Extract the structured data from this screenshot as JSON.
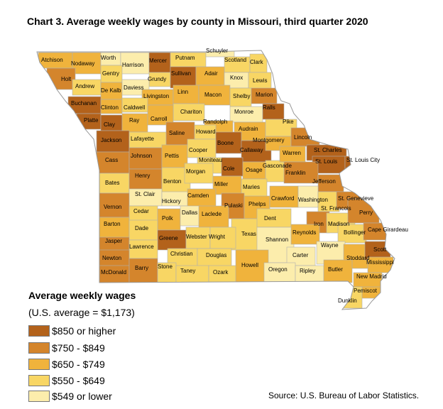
{
  "title": "Chart 3. Average weekly wages by county in Missouri, third quarter 2020",
  "legend": {
    "title": "Average weekly wages",
    "subtitle": "(U.S. average = $1,173)",
    "items": [
      {
        "label": "$850 or higher",
        "color": "#b3621b"
      },
      {
        "label": "$750 - $849",
        "color": "#d4852c"
      },
      {
        "label": "$650 - $749",
        "color": "#f0b33c"
      },
      {
        "label": "$550 - $649",
        "color": "#f8d664"
      },
      {
        "label": "$549 or lower",
        "color": "#fcedac"
      }
    ]
  },
  "source": "Source: U.S. Bureau of Labor Statistics.",
  "counties": [
    {
      "name": "Atchison",
      "cls": 2
    },
    {
      "name": "Nodaway",
      "cls": 2
    },
    {
      "name": "Worth",
      "cls": 4
    },
    {
      "name": "Harrison",
      "cls": 4
    },
    {
      "name": "Mercer",
      "cls": 0
    },
    {
      "name": "Putnam",
      "cls": 3
    },
    {
      "name": "Schuyler",
      "cls": 4
    },
    {
      "name": "Scotland",
      "cls": 3
    },
    {
      "name": "Clark",
      "cls": 3
    },
    {
      "name": "Holt",
      "cls": 1
    },
    {
      "name": "Gentry",
      "cls": 3
    },
    {
      "name": "Grundy",
      "cls": 3
    },
    {
      "name": "Sullivan",
      "cls": 0
    },
    {
      "name": "Adair",
      "cls": 2
    },
    {
      "name": "Knox",
      "cls": 4
    },
    {
      "name": "Lewis",
      "cls": 3
    },
    {
      "name": "Andrew",
      "cls": 3
    },
    {
      "name": "De Kalb",
      "cls": 2
    },
    {
      "name": "Daviess",
      "cls": 4
    },
    {
      "name": "Livingston",
      "cls": 2
    },
    {
      "name": "Linn",
      "cls": 2
    },
    {
      "name": "Macon",
      "cls": 2
    },
    {
      "name": "Shelby",
      "cls": 3
    },
    {
      "name": "Marion",
      "cls": 1
    },
    {
      "name": "Buchanan",
      "cls": 0
    },
    {
      "name": "Clinton",
      "cls": 2
    },
    {
      "name": "Caldwell",
      "cls": 3
    },
    {
      "name": "Chariton",
      "cls": 3
    },
    {
      "name": "Monroe",
      "cls": 4
    },
    {
      "name": "Ralls",
      "cls": 0
    },
    {
      "name": "Platte",
      "cls": 0
    },
    {
      "name": "Clay",
      "cls": 0
    },
    {
      "name": "Ray",
      "cls": 2
    },
    {
      "name": "Carroll",
      "cls": 2
    },
    {
      "name": "Randolph",
      "cls": 2
    },
    {
      "name": "Audrain",
      "cls": 2
    },
    {
      "name": "Pike",
      "cls": 3
    },
    {
      "name": "Jackson",
      "cls": 0
    },
    {
      "name": "Lafayette",
      "cls": 3
    },
    {
      "name": "Saline",
      "cls": 1
    },
    {
      "name": "Howard",
      "cls": 3
    },
    {
      "name": "Boone",
      "cls": 0
    },
    {
      "name": "Callaway",
      "cls": 0
    },
    {
      "name": "Montgomery",
      "cls": 2
    },
    {
      "name": "Lincoln",
      "cls": 1
    },
    {
      "name": "Cass",
      "cls": 1
    },
    {
      "name": "Johnson",
      "cls": 1
    },
    {
      "name": "Pettis",
      "cls": 2
    },
    {
      "name": "Cooper",
      "cls": 3
    },
    {
      "name": "Moniteau",
      "cls": 3
    },
    {
      "name": "Cole",
      "cls": 0
    },
    {
      "name": "Osage",
      "cls": 2
    },
    {
      "name": "Gasconade",
      "cls": 3
    },
    {
      "name": "Warren",
      "cls": 2
    },
    {
      "name": "St. Charles",
      "cls": 0
    },
    {
      "name": "St. Louis",
      "cls": 0
    },
    {
      "name": "St. Louis City",
      "cls": 0
    },
    {
      "name": "Bates",
      "cls": 3
    },
    {
      "name": "Henry",
      "cls": 1
    },
    {
      "name": "Benton",
      "cls": 3
    },
    {
      "name": "Morgan",
      "cls": 3
    },
    {
      "name": "Miller",
      "cls": 2
    },
    {
      "name": "Maries",
      "cls": 3
    },
    {
      "name": "Franklin",
      "cls": 1
    },
    {
      "name": "Jefferson",
      "cls": 1
    },
    {
      "name": "St. Clair",
      "cls": 4
    },
    {
      "name": "Hickory",
      "cls": 4
    },
    {
      "name": "Camden",
      "cls": 2
    },
    {
      "name": "Pulaski",
      "cls": 1
    },
    {
      "name": "Phelps",
      "cls": 2
    },
    {
      "name": "Crawford",
      "cls": 2
    },
    {
      "name": "Washington",
      "cls": 4
    },
    {
      "name": "St. Francois",
      "cls": 3
    },
    {
      "name": "St. Genevieve",
      "cls": 1
    },
    {
      "name": "Vernon",
      "cls": 1
    },
    {
      "name": "Cedar",
      "cls": 3
    },
    {
      "name": "Polk",
      "cls": 2
    },
    {
      "name": "Dallas",
      "cls": 4
    },
    {
      "name": "Laclede",
      "cls": 2
    },
    {
      "name": "Texas",
      "cls": 3
    },
    {
      "name": "Dent",
      "cls": 3
    },
    {
      "name": "Iron",
      "cls": 1
    },
    {
      "name": "Madison",
      "cls": 3
    },
    {
      "name": "Perry",
      "cls": 1
    },
    {
      "name": "Barton",
      "cls": 2
    },
    {
      "name": "Dade",
      "cls": 3
    },
    {
      "name": "Greene",
      "cls": 0
    },
    {
      "name": "Webster",
      "cls": 3
    },
    {
      "name": "Wright",
      "cls": 3
    },
    {
      "name": "Shannon",
      "cls": 4
    },
    {
      "name": "Reynolds",
      "cls": 2
    },
    {
      "name": "Bollinger",
      "cls": 3
    },
    {
      "name": "Cape Girardeau",
      "cls": 1
    },
    {
      "name": "Jasper",
      "cls": 1
    },
    {
      "name": "Lawrence",
      "cls": 3
    },
    {
      "name": "Christian",
      "cls": 3
    },
    {
      "name": "Douglas",
      "cls": 3
    },
    {
      "name": "Carter",
      "cls": 4
    },
    {
      "name": "Wayne",
      "cls": 4
    },
    {
      "name": "Stoddard",
      "cls": 2
    },
    {
      "name": "Scott",
      "cls": 0
    },
    {
      "name": "Newton",
      "cls": 1
    },
    {
      "name": "McDonald",
      "cls": 1
    },
    {
      "name": "Barry",
      "cls": 1
    },
    {
      "name": "Stone",
      "cls": 3
    },
    {
      "name": "Taney",
      "cls": 3
    },
    {
      "name": "Ozark",
      "cls": 3
    },
    {
      "name": "Howell",
      "cls": 2
    },
    {
      "name": "Oregon",
      "cls": 4
    },
    {
      "name": "Ripley",
      "cls": 4
    },
    {
      "name": "Butler",
      "cls": 2
    },
    {
      "name": "Mississippi",
      "cls": 2
    },
    {
      "name": "New Madrid",
      "cls": 2
    },
    {
      "name": "Pemiscot",
      "cls": 2
    },
    {
      "name": "Dunklin",
      "cls": 3
    }
  ]
}
